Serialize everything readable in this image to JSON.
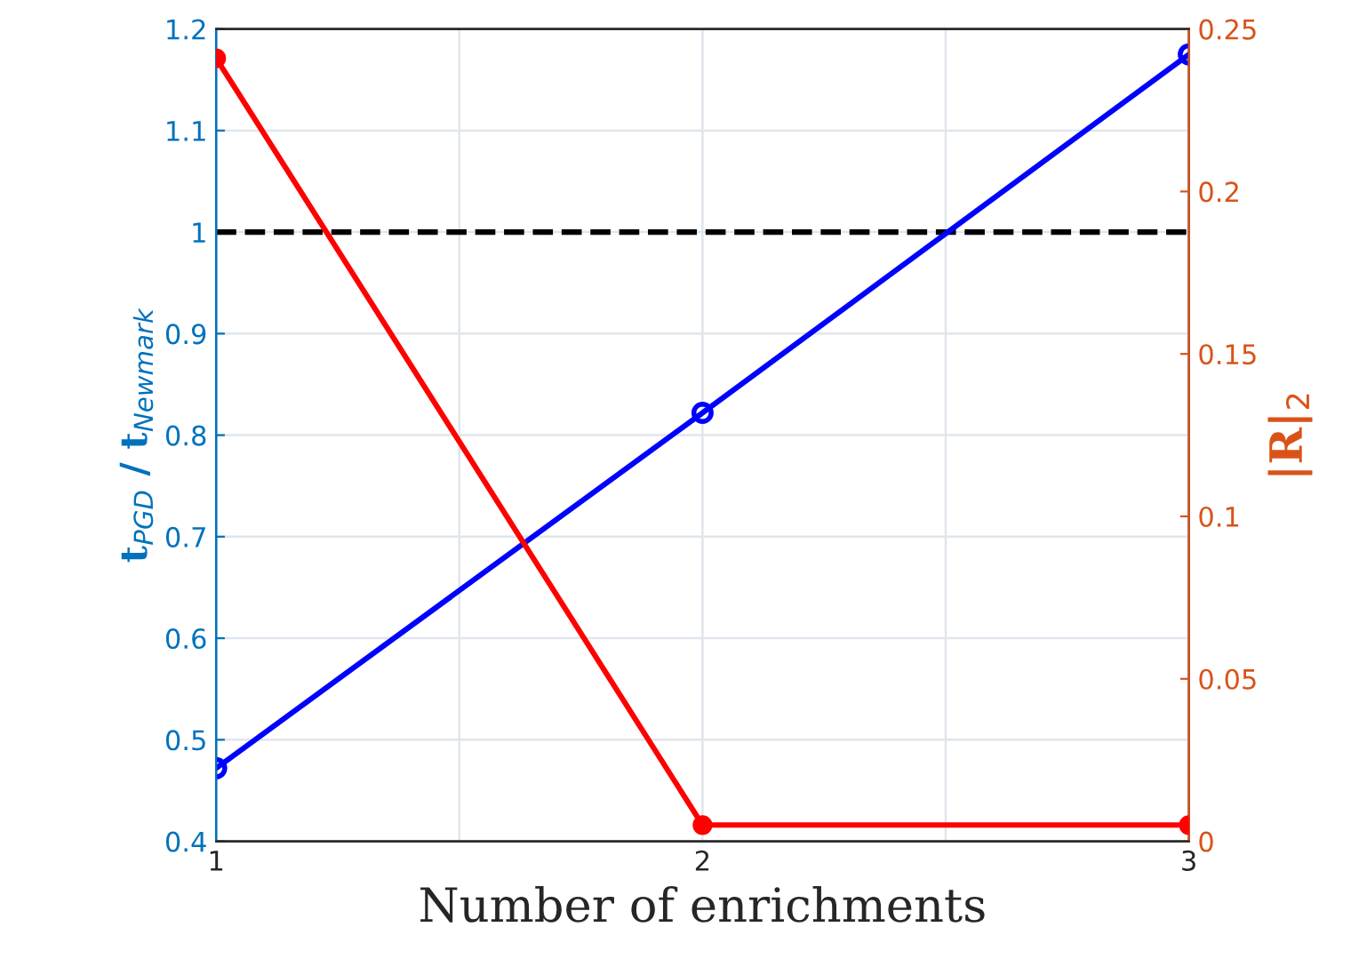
{
  "chart_data": {
    "type": "line",
    "xlabel": "Number of enrichments",
    "ylabel": "t$_{PGD}$ / t$_{Newmark}$",
    "y2label": "|R|$_{2}$",
    "x": [
      1,
      2,
      3
    ],
    "series": [
      {
        "color": "#0000ff",
        "values": [
          0.472,
          0.822,
          1.175
        ],
        "marker": "circle"
      },
      {
        "color": "#ff0000",
        "values": [
          0.241,
          0.005,
          0.005
        ],
        "axis": "y2",
        "marker": "circle"
      }
    ],
    "xlim": [
      1,
      3
    ],
    "xticks": [
      1,
      {
        "value": 1.5,
        "label": null
      },
      2,
      {
        "value": 2.5,
        "label": null
      },
      3
    ],
    "ylim": [
      0.4,
      1.2
    ],
    "yticks": [
      0.4,
      0.5,
      0.6,
      0.7,
      0.8,
      0.9,
      1,
      1.1,
      1.2
    ],
    "y2lim": [
      0,
      0.25
    ],
    "y2ticks": [
      0,
      0.05,
      0.1,
      0.15,
      0.2,
      0.25
    ],
    "ref_lines": [
      {
        "axis": "y",
        "value": 1,
        "color": "#000000",
        "line_style": "dashed"
      }
    ],
    "grid": true,
    "line_style": "solid"
  }
}
